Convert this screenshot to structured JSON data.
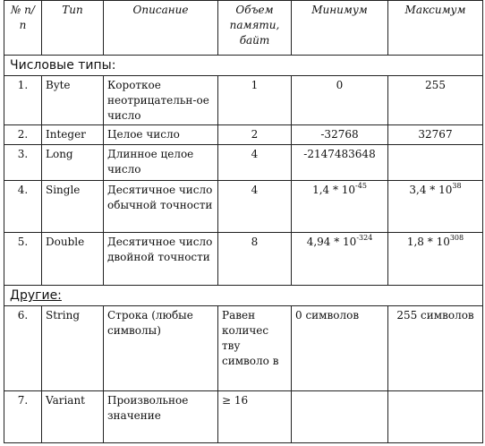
{
  "header": {
    "num": "№ п/п",
    "type": "Тип",
    "description": "Описание",
    "memory": "Объем памяти, байт",
    "min": "Минимум",
    "max": "Максимум"
  },
  "sections": {
    "numeric": "Числовые типы:",
    "other": "Другие:"
  },
  "rows": [
    {
      "num": "1.",
      "type": "Byte",
      "description": "Короткое неотрицательн-ое число",
      "memory": "1",
      "min": "0",
      "max": "255"
    },
    {
      "num": "2.",
      "type": "Integer",
      "description": "Целое число",
      "memory": "2",
      "min": "-32768",
      "max": "32767"
    },
    {
      "num": "3.",
      "type": "Long",
      "description": "Длинное целое число",
      "memory": "4",
      "min": "-2147483648",
      "max": ""
    },
    {
      "num": "4.",
      "type": "Single",
      "description": "Десятичное число обычной точности",
      "memory": "4",
      "min_base": "1,4 * 10",
      "min_exp": "-45",
      "max_base": "3,4 * 10",
      "max_exp": "38"
    },
    {
      "num": "5.",
      "type": "Double",
      "description": "Десятичное число двойной точности",
      "memory": "8",
      "min_base": "4,94 * 10",
      "min_exp": "-324",
      "max_base": "1,8 * 10",
      "max_exp": "308"
    },
    {
      "num": "6.",
      "type": "String",
      "description": "Строка (любые символы)",
      "memory": "Равен количес тву символо в",
      "min": "0 символов",
      "max": "255 символов"
    },
    {
      "num": "7.",
      "type": "Variant",
      "description": "Произвольное значение",
      "memory": "≥ 16",
      "min": "",
      "max": ""
    }
  ]
}
